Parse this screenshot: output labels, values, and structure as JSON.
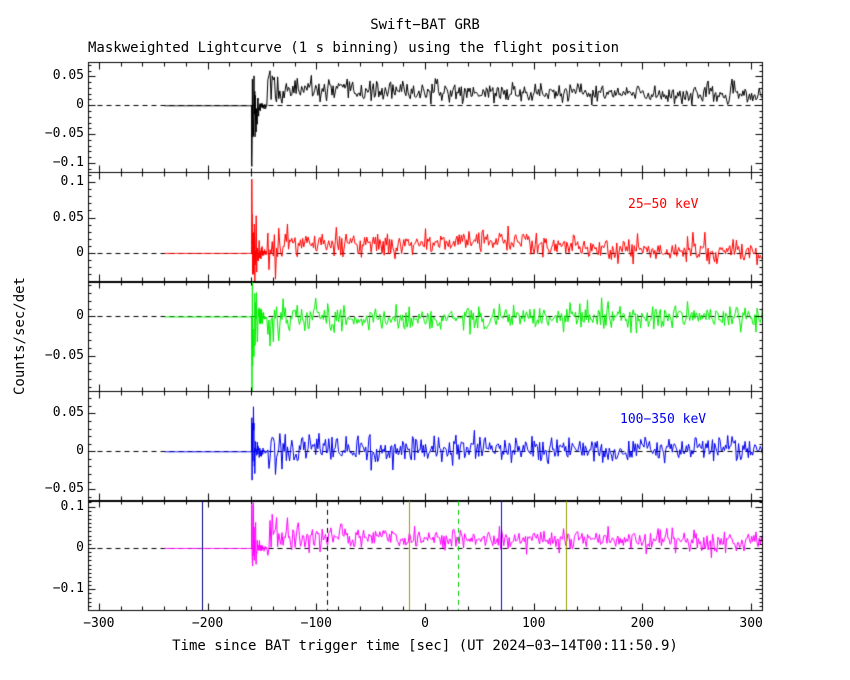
{
  "chart_data": {
    "type": "line",
    "title": "Swift−BAT GRB",
    "subtitle": "Maskweighted Lightcurve (1 s binning) using the flight position",
    "xlabel": "Time since BAT trigger time [sec] (UT 2024−03−14T00:11:50.9)",
    "ylabel": "Counts/sec/det",
    "xlim": [
      -310,
      310
    ],
    "xticks": [
      -300,
      -200,
      -100,
      0,
      100,
      200,
      300
    ],
    "x_minor_step": 20,
    "y_minor_step": 0.01,
    "data_start": -240,
    "data_end": 310,
    "burst_time": -160,
    "axis_color": "#000000",
    "background": "#ffffff",
    "grid": false,
    "legend_position": "in-panel right",
    "panels": [
      {
        "name": "band-1",
        "color": "#000000",
        "label": "",
        "ylim": [
          -0.115,
          0.075
        ],
        "yticks": [
          0.05,
          0,
          -0.05,
          -0.1
        ],
        "burst_amp": -0.105,
        "burst_osc": 0.05,
        "post_mean_start": 0.027,
        "post_mean_end": 0.018,
        "noise": 0.008,
        "seed": 11
      },
      {
        "name": "band-2",
        "color": "#ff0000",
        "label": "25−50 keV",
        "ylim": [
          -0.04,
          0.115
        ],
        "yticks": [
          0.1,
          0.05,
          0
        ],
        "burst_amp": 0.105,
        "burst_osc": 0.05,
        "post_mean_start": 0.014,
        "post_mean_end": 0.002,
        "noise": 0.008,
        "bump_t": 55,
        "bump_amp": 0.012,
        "bump_w": 35,
        "seed": 22
      },
      {
        "name": "band-3",
        "color": "#00ee00",
        "label": "",
        "ylim": [
          -0.095,
          0.045
        ],
        "yticks": [
          0,
          -0.05
        ],
        "burst_amp": -0.08,
        "burst_osc": 0.045,
        "post_mean_start": -0.003,
        "post_mean_end": 0.0,
        "noise": 0.008,
        "seed": 33
      },
      {
        "name": "band-4",
        "color": "#0000ee",
        "label": "100−350 keV",
        "ylim": [
          -0.065,
          0.08
        ],
        "yticks": [
          0.05,
          0,
          -0.05
        ],
        "burst_amp": 0.045,
        "burst_osc": 0.04,
        "post_mean_start": 0.001,
        "post_mean_end": 0.004,
        "noise": 0.008,
        "seed": 44
      },
      {
        "name": "band-5",
        "color": "#ff00ff",
        "label": "",
        "ylim": [
          -0.15,
          0.115
        ],
        "yticks": [
          0.1,
          0,
          -0.1
        ],
        "burst_amp": 0.105,
        "burst_osc": 0.07,
        "post_mean_start": 0.03,
        "post_mean_end": 0.015,
        "noise": 0.013,
        "seed": 55
      }
    ],
    "panel5_vlines": [
      {
        "x": -205,
        "color": "#000080",
        "dashed": false
      },
      {
        "x": -90,
        "color": "#000000",
        "dashed": true
      },
      {
        "x": -15,
        "color": "#9a9a00",
        "dashed": false
      },
      {
        "x": 30,
        "color": "#00cc00",
        "dashed": true
      },
      {
        "x": 70,
        "color": "#0000ff",
        "dashed": false
      },
      {
        "x": 130,
        "color": "#9a9a00",
        "dashed": false
      }
    ],
    "zero_line_dashed": true
  }
}
